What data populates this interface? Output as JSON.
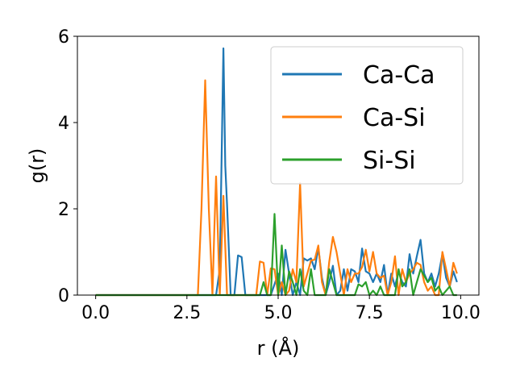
{
  "chart_data": {
    "type": "line",
    "xlabel": "r (Å)",
    "ylabel": "g(r)",
    "xlim": [
      -0.5,
      10.5
    ],
    "ylim": [
      0,
      6
    ],
    "xticks": [
      "0.0",
      "2.5",
      "5.0",
      "7.5",
      "10.0"
    ],
    "xtick_values": [
      0,
      2.5,
      5,
      7.5,
      10
    ],
    "yticks": [
      "0",
      "2",
      "4",
      "6"
    ],
    "ytick_values": [
      0,
      2,
      4,
      6
    ],
    "grid": false,
    "legend_position": "top-right",
    "series": [
      {
        "name": "Ca-Ca",
        "color": "#1f77b4",
        "x": [
          0,
          1,
          2,
          2.8,
          3.3,
          3.4,
          3.5,
          3.55,
          3.6,
          3.7,
          3.8,
          3.9,
          4.0,
          4.1,
          4.2,
          4.4,
          4.6,
          4.8,
          5.0,
          5.1,
          5.2,
          5.3,
          5.4,
          5.5,
          5.6,
          5.7,
          5.8,
          5.9,
          6.0,
          6.1,
          6.2,
          6.3,
          6.4,
          6.5,
          6.6,
          6.7,
          6.8,
          6.9,
          7.0,
          7.1,
          7.2,
          7.3,
          7.4,
          7.5,
          7.6,
          7.7,
          7.8,
          7.9,
          8.0,
          8.1,
          8.2,
          8.3,
          8.4,
          8.5,
          8.6,
          8.7,
          8.8,
          8.9,
          9.0,
          9.1,
          9.2,
          9.3,
          9.4,
          9.5,
          9.6,
          9.7,
          9.8,
          9.9
        ],
        "y": [
          0,
          0,
          0,
          0,
          0,
          0.6,
          5.72,
          3.0,
          2.1,
          0,
          0,
          0.92,
          0.88,
          0,
          0,
          0,
          0,
          0,
          0.5,
          0,
          1.05,
          0.5,
          0,
          0.3,
          0,
          0.85,
          0.8,
          0.85,
          0.6,
          1.1,
          0.4,
          0,
          0.3,
          0.68,
          0,
          0.1,
          0.6,
          0.1,
          0.6,
          0.55,
          0.3,
          1.08,
          0.55,
          0.5,
          0.3,
          0.5,
          0.3,
          0.7,
          0,
          0.5,
          0.2,
          0.55,
          0.3,
          0.2,
          0.95,
          0.5,
          0.9,
          1.28,
          0.5,
          0.3,
          0.5,
          0.2,
          0.5,
          0.95,
          0.4,
          0.2,
          0.55,
          0.3
        ]
      },
      {
        "name": "Ca-Si",
        "color": "#ff7f0e",
        "x": [
          0,
          1,
          2,
          2.8,
          2.9,
          3.0,
          3.1,
          3.2,
          3.25,
          3.3,
          3.4,
          3.5,
          3.6,
          3.7,
          3.8,
          4.0,
          4.2,
          4.4,
          4.5,
          4.6,
          4.7,
          4.8,
          4.9,
          5.0,
          5.1,
          5.2,
          5.3,
          5.4,
          5.5,
          5.6,
          5.7,
          5.8,
          5.9,
          6.0,
          6.1,
          6.2,
          6.3,
          6.4,
          6.5,
          6.6,
          6.7,
          6.8,
          6.9,
          7.0,
          7.1,
          7.2,
          7.3,
          7.4,
          7.5,
          7.6,
          7.7,
          7.8,
          7.9,
          8.0,
          8.1,
          8.2,
          8.3,
          8.4,
          8.5,
          8.6,
          8.7,
          8.8,
          8.9,
          9.0,
          9.1,
          9.2,
          9.3,
          9.4,
          9.5,
          9.6,
          9.7,
          9.8,
          9.9
        ],
        "y": [
          0,
          0,
          0,
          0,
          2.0,
          4.98,
          2.0,
          0,
          1.5,
          2.75,
          0,
          2.3,
          0,
          0,
          0,
          0,
          0,
          0,
          0.78,
          0.75,
          0,
          0.62,
          0.6,
          0,
          0.3,
          0,
          0.1,
          0.6,
          0.3,
          2.6,
          0.2,
          0.5,
          0.8,
          0.82,
          1.15,
          0.3,
          0,
          0.78,
          1.35,
          1.0,
          0.5,
          0,
          0.6,
          0.3,
          0.5,
          0.5,
          0.65,
          1.05,
          0.55,
          1.0,
          0.5,
          0.4,
          0.45,
          0,
          0.3,
          0.9,
          0,
          0.6,
          0.3,
          0.5,
          0.6,
          0.75,
          0.7,
          0.3,
          0.1,
          0.2,
          0,
          0,
          1.0,
          0.6,
          0.2,
          0.75,
          0.5
        ]
      },
      {
        "name": "Si-Si",
        "color": "#2ca02c",
        "x": [
          0,
          1,
          2,
          3,
          4,
          4.5,
          4.6,
          4.7,
          4.8,
          4.9,
          5.0,
          5.1,
          5.2,
          5.3,
          5.4,
          5.5,
          5.6,
          5.7,
          5.8,
          5.9,
          6.0,
          6.1,
          6.2,
          6.3,
          6.4,
          6.5,
          6.6,
          6.7,
          6.8,
          6.9,
          7.0,
          7.1,
          7.2,
          7.3,
          7.4,
          7.5,
          7.6,
          7.7,
          7.8,
          7.9,
          8.0,
          8.1,
          8.2,
          8.3,
          8.4,
          8.5,
          8.6,
          8.7,
          8.8,
          8.9,
          9.0,
          9.1,
          9.2,
          9.3,
          9.4,
          9.5,
          9.6,
          9.7,
          9.8,
          9.9
        ],
        "y": [
          0,
          0,
          0,
          0,
          0,
          0,
          0.3,
          0,
          0,
          1.88,
          0,
          1.15,
          0,
          0.55,
          0.3,
          0,
          0.6,
          0.1,
          0,
          0.6,
          0,
          0,
          0,
          0,
          0.6,
          0.3,
          0,
          0,
          0,
          0,
          0,
          0,
          0.25,
          0.2,
          0.3,
          0,
          0.1,
          0,
          0.2,
          0,
          0,
          0,
          0,
          0.6,
          0.2,
          0.3,
          0.6,
          0,
          0.3,
          0.6,
          0.45,
          0.3,
          0.4,
          0.1,
          0.2,
          0,
          0.1,
          0.2,
          0,
          0
        ]
      }
    ]
  }
}
